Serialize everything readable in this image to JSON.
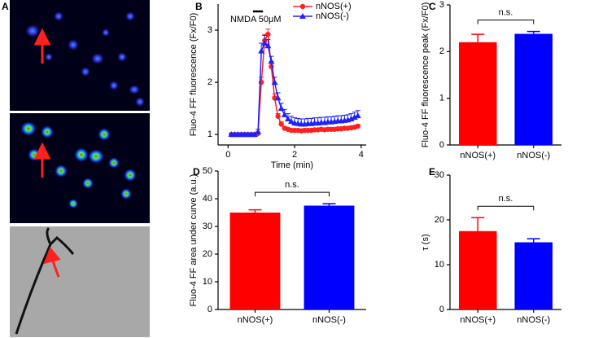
{
  "chart_data": [
    {
      "type": "image",
      "panel_label": "A"
    },
    {
      "type": "line",
      "panel_label": "B",
      "xlabel": "Time (min)",
      "ylabel": "Fluo-4 FF fluorescence (Fx/F0)",
      "xlim": [
        -0.3,
        4.15
      ],
      "ylim": [
        0.8,
        3.5
      ],
      "xticks": [
        0,
        2,
        4
      ],
      "yticks": [
        1,
        2,
        3
      ],
      "annotation": "NMDA 50μM",
      "stimulus_interval": [
        0.75,
        1.05
      ],
      "legend": "upper right",
      "x": [
        0.1,
        0.2,
        0.3,
        0.4,
        0.5,
        0.6,
        0.7,
        0.8,
        0.9,
        1.0,
        1.1,
        1.2,
        1.3,
        1.4,
        1.5,
        1.6,
        1.7,
        1.8,
        1.9,
        2.0,
        2.1,
        2.2,
        2.3,
        2.4,
        2.5,
        2.6,
        2.7,
        2.8,
        2.9,
        3.0,
        3.1,
        3.2,
        3.3,
        3.4,
        3.5,
        3.6,
        3.7,
        3.8,
        3.9
      ],
      "series": [
        {
          "name": "nNOS(+)",
          "color": "#ff2020",
          "marker": "circle",
          "values": [
            1.0,
            1.0,
            1.0,
            1.0,
            1.0,
            1.0,
            1.0,
            1.0,
            1.02,
            2.0,
            2.8,
            2.92,
            2.3,
            1.7,
            1.35,
            1.2,
            1.12,
            1.1,
            1.08,
            1.08,
            1.08,
            1.07,
            1.08,
            1.08,
            1.08,
            1.09,
            1.09,
            1.1,
            1.09,
            1.1,
            1.1,
            1.1,
            1.11,
            1.11,
            1.12,
            1.12,
            1.13,
            1.14,
            1.16
          ],
          "errors": [
            0.02,
            0.02,
            0.02,
            0.02,
            0.02,
            0.02,
            0.02,
            0.02,
            0.03,
            0.1,
            0.12,
            0.1,
            0.1,
            0.08,
            0.05,
            0.04,
            0.03,
            0.03,
            0.03,
            0.03,
            0.03,
            0.03,
            0.03,
            0.03,
            0.03,
            0.03,
            0.03,
            0.03,
            0.03,
            0.03,
            0.03,
            0.03,
            0.03,
            0.03,
            0.03,
            0.03,
            0.03,
            0.03,
            0.03
          ]
        },
        {
          "name": "nNOS(-)",
          "color": "#2020ff",
          "marker": "triangle",
          "values": [
            1.0,
            1.0,
            1.0,
            1.0,
            1.0,
            1.0,
            1.0,
            1.0,
            1.05,
            2.6,
            2.75,
            2.7,
            2.4,
            2.0,
            1.7,
            1.5,
            1.38,
            1.3,
            1.25,
            1.22,
            1.21,
            1.2,
            1.2,
            1.21,
            1.21,
            1.22,
            1.22,
            1.23,
            1.23,
            1.24,
            1.24,
            1.25,
            1.26,
            1.26,
            1.27,
            1.28,
            1.3,
            1.33,
            1.36
          ],
          "errors": [
            0.03,
            0.03,
            0.03,
            0.03,
            0.03,
            0.03,
            0.03,
            0.03,
            0.05,
            0.15,
            0.15,
            0.12,
            0.1,
            0.1,
            0.1,
            0.1,
            0.1,
            0.1,
            0.1,
            0.1,
            0.1,
            0.1,
            0.1,
            0.1,
            0.1,
            0.1,
            0.1,
            0.1,
            0.1,
            0.1,
            0.1,
            0.1,
            0.1,
            0.1,
            0.1,
            0.1,
            0.1,
            0.1,
            0.1
          ]
        }
      ]
    },
    {
      "type": "bar",
      "panel_label": "C",
      "ylabel": "Fluo-4 FF fluorescence peak (Fx/F0)",
      "significance": "n.s.",
      "categories": [
        "nNOS(+)",
        "nNOS(-)"
      ],
      "values": [
        2.2,
        2.38
      ],
      "errors": [
        0.17,
        0.05
      ],
      "colors": [
        "#ff0000",
        "#0000ff"
      ],
      "ylim": [
        0,
        3
      ],
      "yticks": [
        0,
        1,
        2,
        3
      ]
    },
    {
      "type": "bar",
      "panel_label": "D",
      "ylabel": "Fluo-4 FF area under curve (a.u.)",
      "significance": "n.s.",
      "categories": [
        "nNOS(+)",
        "nNOS(-)"
      ],
      "values": [
        35,
        37.5
      ],
      "errors": [
        1,
        0.7
      ],
      "colors": [
        "#ff0000",
        "#0000ff"
      ],
      "ylim": [
        0,
        50
      ],
      "yticks": [
        0,
        10,
        20,
        30,
        40,
        50
      ]
    },
    {
      "type": "bar",
      "panel_label": "E",
      "ylabel": "τ (s)",
      "significance": "n.s.",
      "categories": [
        "nNOS(+)",
        "nNOS(-)"
      ],
      "values": [
        17.5,
        15
      ],
      "errors": [
        3,
        0.8
      ],
      "colors": [
        "#ff0000",
        "#0000ff"
      ],
      "ylim": [
        0,
        30
      ],
      "yticks": [
        0,
        10,
        20,
        30
      ]
    }
  ]
}
